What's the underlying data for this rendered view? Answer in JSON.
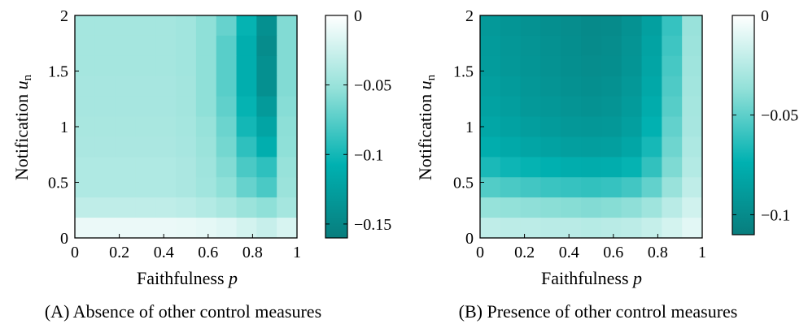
{
  "colors": {
    "colormap": [
      "#ffffff",
      "#94e1d9",
      "#00b1b1",
      "#087d7d"
    ],
    "axis": "#000000"
  },
  "chart_data": [
    {
      "type": "heatmap",
      "caption": "(A) Absence of other control measures",
      "xlabel": "Faithfulness ",
      "xlabel_var": "p",
      "ylabel": "Notification ",
      "ylabel_var": "u",
      "ylabel_sub": "n",
      "xlim": [
        0,
        1
      ],
      "ylim": [
        0,
        2
      ],
      "x_ticks": [
        "0",
        "0.2",
        "0.4",
        "0.6",
        "0.8",
        "1"
      ],
      "y_ticks": [
        "0",
        "0.5",
        "1",
        "1.5",
        "2"
      ],
      "colorbar": {
        "range": [
          -0.16,
          0
        ],
        "ticks": [
          0,
          -0.05,
          -0.1,
          -0.15
        ],
        "tick_labels": [
          "0",
          "−0.05",
          "−0.1",
          "−0.15"
        ]
      },
      "x_bins": [
        0,
        0.1,
        0.2,
        0.3,
        0.4,
        0.5,
        0.6,
        0.7,
        0.8,
        0.9,
        1.0
      ],
      "y_bins": [
        0,
        0.2,
        0.4,
        0.6,
        0.8,
        1.0,
        1.2,
        1.4,
        1.6,
        1.8,
        2.0
      ],
      "values": [
        [
          -0.045,
          -0.045,
          -0.045,
          -0.045,
          -0.045,
          -0.047,
          -0.055,
          -0.07,
          -0.105,
          -0.14,
          -0.06
        ],
        [
          -0.045,
          -0.045,
          -0.045,
          -0.045,
          -0.045,
          -0.047,
          -0.055,
          -0.075,
          -0.11,
          -0.145,
          -0.06
        ],
        [
          -0.045,
          -0.045,
          -0.045,
          -0.045,
          -0.045,
          -0.047,
          -0.055,
          -0.075,
          -0.11,
          -0.14,
          -0.06
        ],
        [
          -0.044,
          -0.044,
          -0.044,
          -0.044,
          -0.044,
          -0.046,
          -0.055,
          -0.075,
          -0.11,
          -0.14,
          -0.06
        ],
        [
          -0.044,
          -0.044,
          -0.044,
          -0.044,
          -0.044,
          -0.046,
          -0.055,
          -0.072,
          -0.105,
          -0.13,
          -0.058
        ],
        [
          -0.043,
          -0.043,
          -0.043,
          -0.043,
          -0.043,
          -0.045,
          -0.052,
          -0.068,
          -0.1,
          -0.12,
          -0.056
        ],
        [
          -0.042,
          -0.042,
          -0.042,
          -0.042,
          -0.042,
          -0.044,
          -0.05,
          -0.065,
          -0.09,
          -0.11,
          -0.055
        ],
        [
          -0.04,
          -0.04,
          -0.04,
          -0.04,
          -0.04,
          -0.042,
          -0.048,
          -0.06,
          -0.08,
          -0.09,
          -0.052
        ],
        [
          -0.04,
          -0.04,
          -0.04,
          -0.04,
          -0.04,
          -0.042,
          -0.047,
          -0.055,
          -0.07,
          -0.08,
          -0.05
        ],
        [
          -0.032,
          -0.032,
          -0.032,
          -0.032,
          -0.032,
          -0.034,
          -0.038,
          -0.043,
          -0.05,
          -0.055,
          -0.045
        ],
        [
          -0.01,
          -0.01,
          -0.01,
          -0.01,
          -0.01,
          -0.011,
          -0.013,
          -0.016,
          -0.022,
          -0.028,
          -0.02
        ]
      ]
    },
    {
      "type": "heatmap",
      "caption": "(B) Presence of other control measures",
      "xlabel": "Faithfulness ",
      "xlabel_var": "p",
      "ylabel": "Notification ",
      "ylabel_var": "u",
      "ylabel_sub": "n",
      "xlim": [
        0,
        1
      ],
      "ylim": [
        0,
        2
      ],
      "x_ticks": [
        "0",
        "0.2",
        "0.4",
        "0.6",
        "0.8",
        "1"
      ],
      "y_ticks": [
        "0",
        "0.5",
        "1",
        "1.5",
        "2"
      ],
      "colorbar": {
        "range": [
          -0.11,
          0
        ],
        "ticks": [
          0,
          -0.05,
          -0.1
        ],
        "tick_labels": [
          "0",
          "−0.05",
          "−0.1"
        ]
      },
      "x_bins": [
        0,
        0.1,
        0.2,
        0.3,
        0.4,
        0.5,
        0.6,
        0.7,
        0.8,
        0.9,
        1.0
      ],
      "y_bins": [
        0,
        0.2,
        0.4,
        0.6,
        0.8,
        1.0,
        1.2,
        1.4,
        1.6,
        1.8,
        2.0
      ],
      "values": [
        [
          -0.09,
          -0.093,
          -0.095,
          -0.097,
          -0.099,
          -0.101,
          -0.1,
          -0.095,
          -0.085,
          -0.06,
          -0.035
        ],
        [
          -0.089,
          -0.092,
          -0.094,
          -0.096,
          -0.098,
          -0.1,
          -0.099,
          -0.094,
          -0.083,
          -0.058,
          -0.034
        ],
        [
          -0.088,
          -0.091,
          -0.093,
          -0.095,
          -0.097,
          -0.099,
          -0.098,
          -0.093,
          -0.082,
          -0.056,
          -0.033
        ],
        [
          -0.086,
          -0.089,
          -0.092,
          -0.094,
          -0.096,
          -0.097,
          -0.096,
          -0.091,
          -0.08,
          -0.054,
          -0.032
        ],
        [
          -0.084,
          -0.087,
          -0.09,
          -0.092,
          -0.094,
          -0.095,
          -0.094,
          -0.089,
          -0.077,
          -0.052,
          -0.031
        ],
        [
          -0.081,
          -0.084,
          -0.087,
          -0.089,
          -0.091,
          -0.092,
          -0.091,
          -0.086,
          -0.073,
          -0.049,
          -0.03
        ],
        [
          -0.076,
          -0.079,
          -0.082,
          -0.084,
          -0.086,
          -0.087,
          -0.086,
          -0.081,
          -0.068,
          -0.046,
          -0.028
        ],
        [
          -0.067,
          -0.07,
          -0.072,
          -0.074,
          -0.076,
          -0.077,
          -0.076,
          -0.072,
          -0.061,
          -0.042,
          -0.026
        ],
        [
          -0.053,
          -0.055,
          -0.057,
          -0.059,
          -0.06,
          -0.061,
          -0.06,
          -0.057,
          -0.049,
          -0.035,
          -0.022
        ],
        [
          -0.036,
          -0.037,
          -0.038,
          -0.039,
          -0.04,
          -0.041,
          -0.04,
          -0.038,
          -0.033,
          -0.024,
          -0.016
        ],
        [
          -0.022,
          -0.023,
          -0.023,
          -0.024,
          -0.024,
          -0.025,
          -0.024,
          -0.023,
          -0.02,
          -0.015,
          -0.01
        ]
      ]
    }
  ]
}
